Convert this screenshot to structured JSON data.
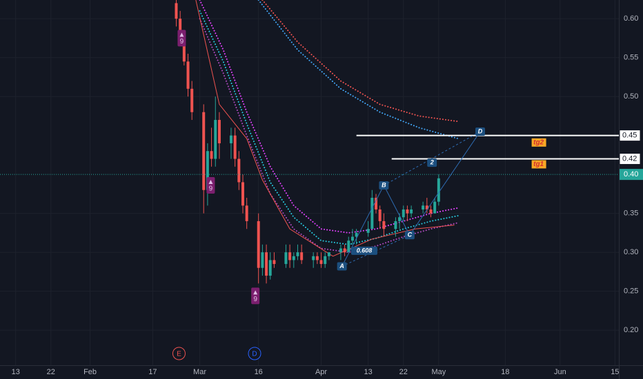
{
  "chart_data": {
    "type": "candlestick",
    "xlim": [
      9,
      167
    ],
    "ylim": [
      0.155,
      0.624
    ],
    "grid": true,
    "up_color": "#26a69a",
    "down_color": "#ef5350",
    "xticks": [
      {
        "value": 13,
        "label": "13"
      },
      {
        "value": 22,
        "label": "22"
      },
      {
        "value": 32,
        "label": "Feb"
      },
      {
        "value": 48,
        "label": "17"
      },
      {
        "value": 60,
        "label": "Mar"
      },
      {
        "value": 75,
        "label": "16"
      },
      {
        "value": 91,
        "label": "Apr"
      },
      {
        "value": 103,
        "label": "13"
      },
      {
        "value": 112,
        "label": "22"
      },
      {
        "value": 121,
        "label": "May"
      },
      {
        "value": 138,
        "label": "18"
      },
      {
        "value": 152,
        "label": "Jun"
      },
      {
        "value": 166,
        "label": "15"
      }
    ],
    "yticks": [
      {
        "value": 0.6,
        "label": "0.60"
      },
      {
        "value": 0.55,
        "label": "0.55"
      },
      {
        "value": 0.5,
        "label": "0.50"
      },
      {
        "value": 0.35,
        "label": "0.35"
      },
      {
        "value": 0.3,
        "label": "0.30"
      },
      {
        "value": 0.25,
        "label": "0.25"
      },
      {
        "value": 0.2,
        "label": "0.20"
      }
    ],
    "x": [
      54,
      55,
      56,
      57,
      58,
      61,
      62,
      63,
      64,
      65,
      68,
      69,
      70,
      71,
      72,
      75,
      76,
      77,
      78,
      79,
      82,
      83,
      84,
      85,
      86,
      89,
      90,
      91,
      92,
      93,
      96,
      97,
      98,
      99,
      100,
      103,
      104,
      105,
      106,
      107,
      110,
      111,
      112,
      113,
      114,
      117,
      118,
      119,
      120,
      121
    ],
    "open": [
      0.62,
      0.6,
      0.57,
      0.545,
      0.51,
      0.48,
      0.38,
      0.43,
      0.42,
      0.47,
      0.44,
      0.45,
      0.42,
      0.39,
      0.36,
      0.34,
      0.28,
      0.3,
      0.27,
      0.29,
      0.285,
      0.3,
      0.29,
      0.295,
      0.3,
      0.29,
      0.295,
      0.29,
      0.285,
      0.295,
      0.3,
      0.305,
      0.3,
      0.315,
      0.32,
      0.325,
      0.33,
      0.37,
      0.355,
      0.34,
      0.33,
      0.34,
      0.345,
      0.355,
      0.35,
      0.355,
      0.36,
      0.355,
      0.35,
      0.365
    ],
    "high": [
      0.625,
      0.61,
      0.58,
      0.555,
      0.52,
      0.49,
      0.44,
      0.46,
      0.5,
      0.48,
      0.46,
      0.46,
      0.43,
      0.4,
      0.37,
      0.35,
      0.31,
      0.31,
      0.3,
      0.3,
      0.31,
      0.31,
      0.3,
      0.31,
      0.31,
      0.3,
      0.3,
      0.3,
      0.3,
      0.3,
      0.31,
      0.31,
      0.32,
      0.33,
      0.33,
      0.34,
      0.38,
      0.375,
      0.36,
      0.35,
      0.345,
      0.35,
      0.36,
      0.36,
      0.36,
      0.365,
      0.37,
      0.36,
      0.37,
      0.4
    ],
    "low": [
      0.59,
      0.565,
      0.54,
      0.5,
      0.47,
      0.35,
      0.36,
      0.41,
      0.41,
      0.42,
      0.42,
      0.41,
      0.38,
      0.35,
      0.33,
      0.26,
      0.27,
      0.26,
      0.265,
      0.28,
      0.28,
      0.28,
      0.28,
      0.29,
      0.285,
      0.28,
      0.285,
      0.28,
      0.28,
      0.29,
      0.29,
      0.295,
      0.3,
      0.31,
      0.31,
      0.32,
      0.33,
      0.35,
      0.33,
      0.32,
      0.32,
      0.33,
      0.34,
      0.34,
      0.345,
      0.35,
      0.35,
      0.345,
      0.35,
      0.36
    ],
    "close": [
      0.6,
      0.57,
      0.545,
      0.51,
      0.48,
      0.38,
      0.43,
      0.42,
      0.47,
      0.44,
      0.45,
      0.42,
      0.39,
      0.36,
      0.34,
      0.28,
      0.3,
      0.27,
      0.29,
      0.285,
      0.3,
      0.29,
      0.295,
      0.3,
      0.29,
      0.295,
      0.29,
      0.285,
      0.295,
      0.3,
      0.305,
      0.3,
      0.315,
      0.32,
      0.325,
      0.33,
      0.37,
      0.355,
      0.34,
      0.33,
      0.34,
      0.345,
      0.355,
      0.35,
      0.355,
      0.36,
      0.355,
      0.35,
      0.365,
      0.395
    ],
    "lines": [
      {
        "color": "#ef5350",
        "dash": true,
        "x": [
          76,
          85,
          96,
          106,
          116,
          126
        ],
        "values": [
          0.624,
          0.57,
          0.52,
          0.49,
          0.475,
          0.468
        ]
      },
      {
        "color": "#42a5f5",
        "dash": true,
        "x": [
          75,
          85,
          96,
          106,
          116,
          126
        ],
        "values": [
          0.624,
          0.56,
          0.51,
          0.48,
          0.46,
          0.446
        ]
      },
      {
        "color": "#e040fb",
        "dash": true,
        "x": [
          60,
          66,
          72,
          78,
          84,
          91,
          98,
          105,
          112,
          119,
          126
        ],
        "values": [
          0.624,
          0.56,
          0.48,
          0.41,
          0.36,
          0.33,
          0.325,
          0.33,
          0.34,
          0.35,
          0.357
        ]
      },
      {
        "color": "#26c6da",
        "dash": true,
        "x": [
          60,
          66,
          72,
          78,
          84,
          91,
          98,
          105,
          112,
          119,
          126
        ],
        "values": [
          0.61,
          0.545,
          0.465,
          0.39,
          0.345,
          0.315,
          0.31,
          0.318,
          0.33,
          0.34,
          0.347
        ]
      },
      {
        "color": "#ab47bc",
        "dash": true,
        "x": [
          60,
          66,
          72,
          78,
          84,
          91,
          98,
          105,
          112,
          119,
          126
        ],
        "values": [
          0.6,
          0.53,
          0.45,
          0.375,
          0.33,
          0.305,
          0.3,
          0.308,
          0.32,
          0.33,
          0.338
        ]
      },
      {
        "color": "#ef5350",
        "dash": false,
        "x": [
          59,
          65,
          72,
          76,
          83,
          94,
          104,
          115,
          125
        ],
        "values": [
          0.624,
          0.49,
          0.446,
          0.393,
          0.33,
          0.295,
          0.317,
          0.33,
          0.335
        ]
      }
    ],
    "levels": [
      {
        "value": 0.45,
        "label": "0.45",
        "start": 100
      },
      {
        "value": 0.42,
        "label": "0.42",
        "start": 109
      }
    ],
    "current_price": {
      "value": 0.4,
      "label": "0.40",
      "color": "#26a69a"
    },
    "targets": [
      {
        "x": 146.5,
        "y": 0.441,
        "label": "tg2"
      },
      {
        "x": 146.5,
        "y": 0.413,
        "label": "tg1"
      }
    ],
    "pattern_points": [
      {
        "x": 96.3,
        "y": 0.282,
        "label": "A"
      },
      {
        "x": 107,
        "y": 0.386,
        "label": "B"
      },
      {
        "x": 113.6,
        "y": 0.322,
        "label": "C"
      },
      {
        "x": 131.6,
        "y": 0.455,
        "label": "D"
      }
    ],
    "pattern_notes": [
      {
        "x": 119.3,
        "y": 0.415,
        "label": "2"
      },
      {
        "x": 102,
        "y": 0.302,
        "label": "0.608"
      }
    ],
    "markers": [
      {
        "x": 55.4,
        "y": 0.575,
        "label": "9"
      },
      {
        "x": 62.8,
        "y": 0.386,
        "label": "9"
      },
      {
        "x": 74.2,
        "y": 0.244,
        "label": "9"
      }
    ],
    "events": [
      {
        "x": 54.7,
        "label": "E",
        "color": "#ef5350"
      },
      {
        "x": 74,
        "label": "D",
        "color": "#2962ff"
      }
    ]
  }
}
